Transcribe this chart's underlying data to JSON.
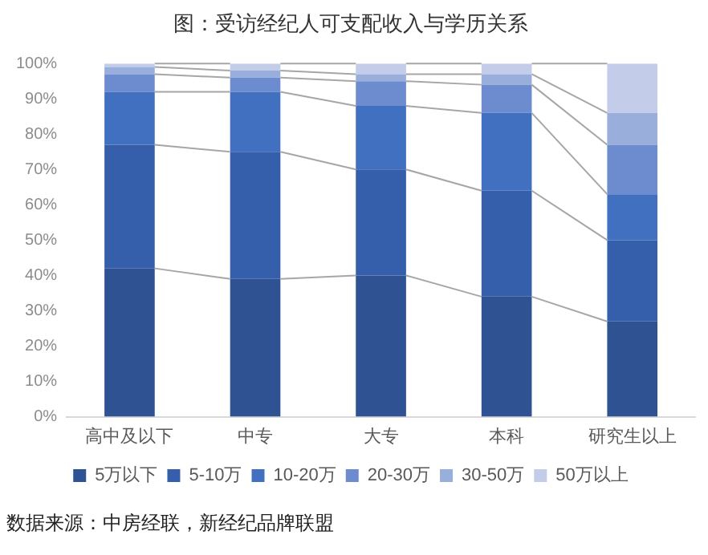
{
  "chart_data": {
    "type": "bar",
    "title": "图：受访经纪人可支配收入与学历关系",
    "categories": [
      "高中及以下",
      "中专",
      "大专",
      "本科",
      "研究生以上"
    ],
    "stacked": true,
    "series": [
      {
        "name": "5万以下",
        "color": "#2f5293",
        "values": [
          42,
          39,
          40,
          34,
          27
        ]
      },
      {
        "name": "5-10万",
        "color": "#365fab",
        "values": [
          35,
          36,
          30,
          30,
          23
        ]
      },
      {
        "name": "10-20万",
        "color": "#4170c0",
        "values": [
          15,
          17,
          18,
          22,
          13
        ]
      },
      {
        "name": "20-30万",
        "color": "#6d8ccf",
        "values": [
          5,
          4,
          7,
          8,
          14
        ]
      },
      {
        "name": "30-50万",
        "color": "#9aaedb",
        "values": [
          2,
          2,
          2,
          3,
          9
        ]
      },
      {
        "name": "50万以上",
        "color": "#c3cdea",
        "values": [
          1,
          2,
          3,
          3,
          14
        ]
      }
    ],
    "ylim": [
      0,
      100
    ],
    "yticks": [
      {
        "value": 0,
        "label": "0%"
      },
      {
        "value": 10,
        "label": "10%"
      },
      {
        "value": 20,
        "label": "20%"
      },
      {
        "value": 30,
        "label": "30%"
      },
      {
        "value": 40,
        "label": "40%"
      },
      {
        "value": 50,
        "label": "50%"
      },
      {
        "value": 60,
        "label": "60%"
      },
      {
        "value": 70,
        "label": "70%"
      },
      {
        "value": 80,
        "label": "80%"
      },
      {
        "value": 90,
        "label": "90%"
      },
      {
        "value": 100,
        "label": "100%"
      }
    ],
    "grid": false,
    "legend": "bottom",
    "annotations": [
      "数据来源：中房经联，新经纪品牌联盟"
    ]
  }
}
